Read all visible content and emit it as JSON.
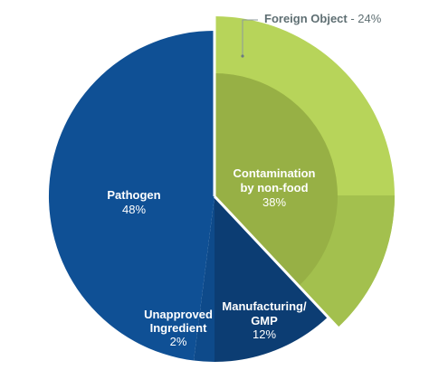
{
  "chart_data": {
    "type": "pie",
    "title": "",
    "slices": [
      {
        "label": "Pathogen",
        "value": 48,
        "value_label": "48%",
        "color": "#0f5095"
      },
      {
        "label": "Unapproved Ingredient",
        "label_lines": [
          "Unapproved",
          "Ingredient"
        ],
        "value": 2,
        "value_label": "2%",
        "color": "#0e4a8a"
      },
      {
        "label": "Manufacturing/ GMP",
        "label_lines": [
          "Manufacturing/",
          "GMP"
        ],
        "value": 12,
        "value_label": "12%",
        "color": "#0c3d73"
      }
    ],
    "outer_slice": {
      "label": "Contamination by non-food",
      "label_lines": [
        "Contamination",
        "by non-food"
      ],
      "value": 38,
      "value_label": "38%",
      "color": "#b7d45a",
      "shade_color": "#a3c04e"
    },
    "inner_sub_slice": {
      "label": "Foreign Object",
      "value": 24,
      "callout_text": "Foreign Object",
      "callout_value": " - 24%",
      "color": "#97b045"
    }
  }
}
